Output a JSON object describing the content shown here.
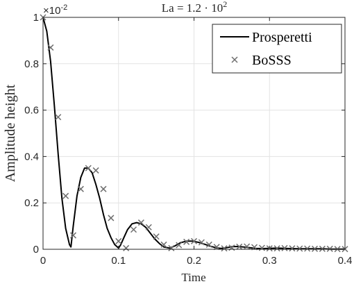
{
  "chart_data": {
    "type": "line",
    "title_prefix": "La = 1.2 · 10",
    "title_exponent": "2",
    "xlabel": "Time",
    "ylabel": "Amplitude height",
    "exponent_label_base": "×10",
    "exponent_label_power": "-2",
    "xlim": [
      0,
      0.4
    ],
    "ylim": [
      0,
      1
    ],
    "xticks": [
      "0",
      "0.1",
      "0.2",
      "0.3",
      "0.4"
    ],
    "yticks": [
      "0",
      "0.2",
      "0.4",
      "0.6",
      "0.8",
      "1"
    ],
    "grid": true,
    "legend_position": "top-right",
    "series": [
      {
        "name": "Prosperetti",
        "style": "line",
        "color": "#000000",
        "x": [
          0,
          0.005,
          0.01,
          0.015,
          0.02,
          0.025,
          0.03,
          0.035,
          0.037,
          0.04,
          0.045,
          0.05,
          0.055,
          0.06,
          0.065,
          0.07,
          0.075,
          0.08,
          0.085,
          0.09,
          0.095,
          0.1,
          0.103,
          0.107,
          0.112,
          0.118,
          0.124,
          0.13,
          0.136,
          0.142,
          0.148,
          0.154,
          0.16,
          0.168,
          0.175,
          0.182,
          0.19,
          0.198,
          0.206,
          0.214,
          0.222,
          0.23,
          0.236,
          0.243,
          0.25,
          0.258,
          0.266,
          0.274,
          0.282,
          0.29,
          0.3,
          0.31,
          0.32,
          0.33,
          0.34,
          0.35,
          0.36,
          0.37,
          0.38,
          0.39,
          0.4
        ],
        "y": [
          1.0,
          0.94,
          0.81,
          0.62,
          0.41,
          0.22,
          0.09,
          0.02,
          0.01,
          0.1,
          0.23,
          0.31,
          0.35,
          0.35,
          0.33,
          0.28,
          0.22,
          0.15,
          0.09,
          0.05,
          0.02,
          0.005,
          0.02,
          0.05,
          0.085,
          0.11,
          0.115,
          0.11,
          0.095,
          0.07,
          0.045,
          0.025,
          0.01,
          0.005,
          0.015,
          0.028,
          0.035,
          0.035,
          0.03,
          0.022,
          0.013,
          0.006,
          0.004,
          0.007,
          0.011,
          0.012,
          0.01,
          0.007,
          0.004,
          0.003,
          0.004,
          0.005,
          0.004,
          0.003,
          0.002,
          0.002,
          0.002,
          0.002,
          0.001,
          0.001,
          0.001
        ]
      },
      {
        "name": "BoSSS",
        "style": "marker",
        "marker": "x",
        "color": "#6e6e6e",
        "x": [
          0.0,
          0.01,
          0.02,
          0.03,
          0.04,
          0.05,
          0.06,
          0.07,
          0.08,
          0.09,
          0.1,
          0.11,
          0.12,
          0.13,
          0.14,
          0.15,
          0.16,
          0.17,
          0.18,
          0.19,
          0.2,
          0.21,
          0.22,
          0.23,
          0.24,
          0.25,
          0.26,
          0.27,
          0.28,
          0.29,
          0.3,
          0.31,
          0.32,
          0.33,
          0.34,
          0.35,
          0.36,
          0.37,
          0.38,
          0.39,
          0.4
        ],
        "y": [
          1.0,
          0.87,
          0.57,
          0.23,
          0.06,
          0.26,
          0.35,
          0.34,
          0.26,
          0.135,
          0.035,
          0.005,
          0.085,
          0.115,
          0.095,
          0.055,
          0.02,
          0.005,
          0.018,
          0.032,
          0.035,
          0.03,
          0.02,
          0.01,
          0.004,
          0.007,
          0.011,
          0.012,
          0.009,
          0.006,
          0.004,
          0.004,
          0.005,
          0.004,
          0.003,
          0.003,
          0.002,
          0.002,
          0.002,
          0.001,
          0.001
        ]
      }
    ]
  }
}
